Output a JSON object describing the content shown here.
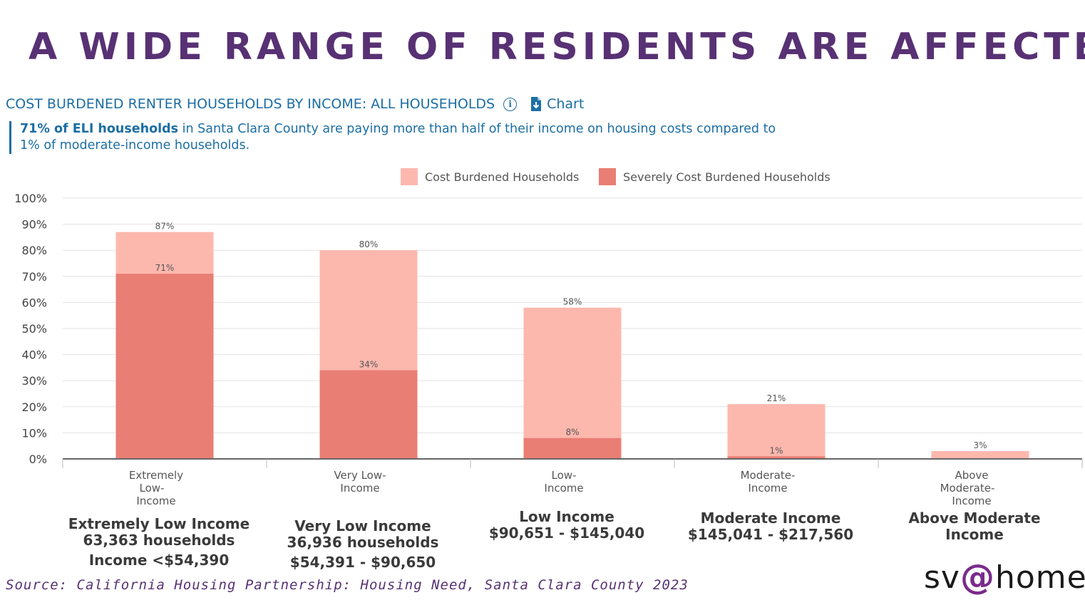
{
  "title": "A WIDE RANGE OF RESIDENTS ARE AFFECTED",
  "chart_header": {
    "title": "COST BURDENED RENTER HOUSEHOLDS BY INCOME: ALL HOUSEHOLDS",
    "info_icon": "info-icon",
    "download_icon": "download-icon",
    "chart_link": "Chart"
  },
  "callout": {
    "bold": "71% of ELI households",
    "rest_line1": " in Santa Clara County are paying more than half of their income on housing costs compared to",
    "line2": "1% of moderate-income households."
  },
  "chart_data": {
    "type": "bar",
    "categories": [
      [
        "Extremely",
        "Low-",
        "Income"
      ],
      [
        "Very Low-",
        "Income"
      ],
      [
        "Low-",
        "Income"
      ],
      [
        "Moderate-",
        "Income"
      ],
      [
        "Above",
        "Moderate-",
        "Income"
      ]
    ],
    "series": [
      {
        "name": "Cost Burdened Households",
        "values": [
          87,
          80,
          58,
          21,
          3
        ],
        "labels": [
          "87%",
          "80%",
          "58%",
          "21%",
          "3%"
        ],
        "color": "#fdb8ae"
      },
      {
        "name": "Severely Cost Burdened Households",
        "values": [
          71,
          34,
          8,
          1,
          0
        ],
        "labels": [
          "71%",
          "34%",
          "8%",
          "1%",
          ""
        ],
        "color": "#e97e74"
      }
    ],
    "y_ticks": [
      "0%",
      "10%",
      "20%",
      "30%",
      "40%",
      "50%",
      "60%",
      "70%",
      "80%",
      "90%",
      "100%"
    ],
    "ylim": [
      0,
      100
    ],
    "grid": true,
    "legend_position": "top-center"
  },
  "category_descriptions": [
    {
      "lines": [
        "Extremely Low Income",
        "63,363 households",
        "Income <$54,390"
      ]
    },
    {
      "lines": [
        "Very Low Income",
        "36,936 households",
        "$54,391 - $90,650"
      ]
    },
    {
      "lines": [
        "Low Income",
        "$90,651 - $145,040"
      ]
    },
    {
      "lines": [
        "Moderate Income",
        "$145,041 - $217,560"
      ]
    },
    {
      "lines": [
        "Above Moderate",
        "Income"
      ]
    }
  ],
  "source": "Source: California Housing Partnership: Housing Need, Santa Clara County 2023",
  "logo": {
    "prefix": "sv",
    "at": "@",
    "suffix": "home"
  },
  "colors": {
    "title": "#583174",
    "header": "#1c6ea4",
    "cost_burdened": "#fdb8ae",
    "severely_cost_burdened": "#e97e74"
  }
}
